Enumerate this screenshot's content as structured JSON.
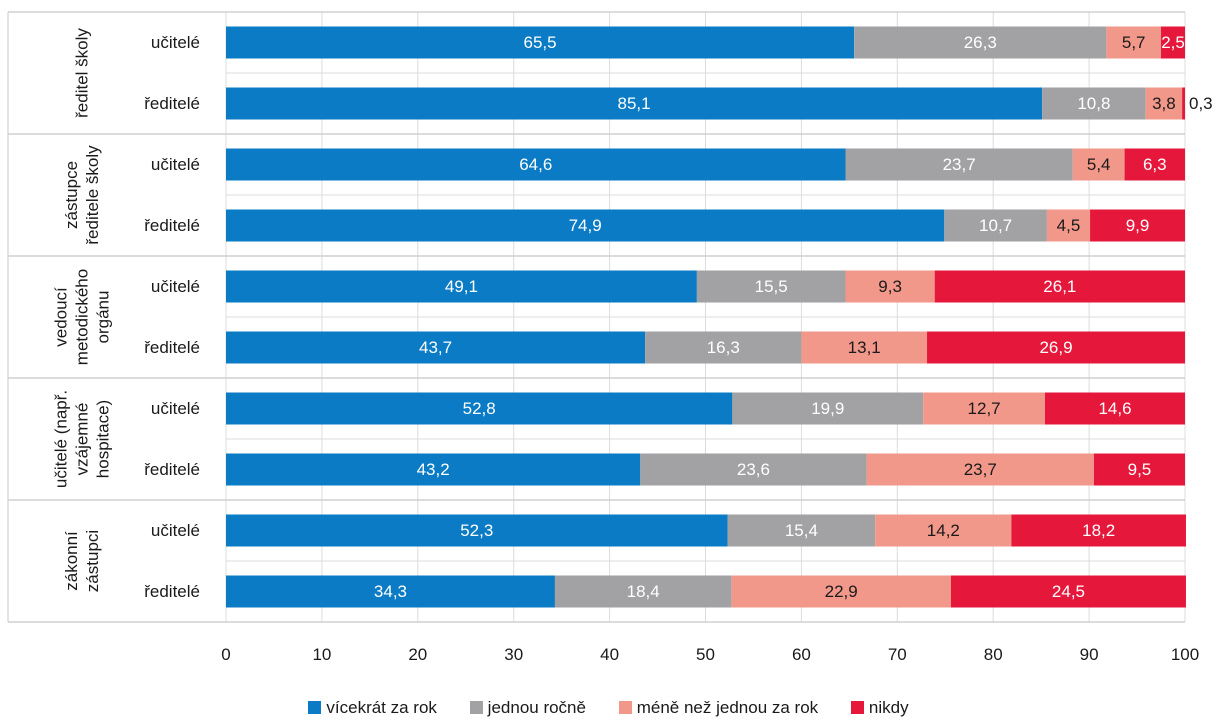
{
  "chart_data": {
    "type": "bar",
    "orientation": "horizontal",
    "stacked": true,
    "groups": [
      {
        "label_lines": [
          "ředitel školy"
        ],
        "rows": [
          "učitelé",
          "ředitelé"
        ]
      },
      {
        "label_lines": [
          "zástupce",
          "ředitele školy"
        ],
        "rows": [
          "učitelé",
          "ředitelé"
        ]
      },
      {
        "label_lines": [
          "vedoucí",
          "metodického",
          "orgánu"
        ],
        "rows": [
          "učitelé",
          "ředitelé"
        ]
      },
      {
        "label_lines": [
          "učitelé (např.",
          "vzájemné",
          "hospitace)"
        ],
        "rows": [
          "učitelé",
          "ředitelé"
        ]
      },
      {
        "label_lines": [
          "zákonní",
          "zástupci"
        ],
        "rows": [
          "učitelé",
          "ředitelé"
        ]
      }
    ],
    "series": [
      {
        "name": "vícekrát za rok",
        "color": "#0a7bc4",
        "values": [
          65.5,
          85.1,
          64.6,
          74.9,
          49.1,
          43.7,
          52.8,
          43.2,
          52.3,
          34.3
        ],
        "labels": [
          "65,5",
          "85,1",
          "64,6",
          "74,9",
          "49,1",
          "43,7",
          "52,8",
          "43,2",
          "52,3",
          "34,3"
        ]
      },
      {
        "name": "jednou ročně",
        "color": "#a2a2a5",
        "values": [
          26.3,
          10.8,
          23.7,
          10.7,
          15.5,
          16.3,
          19.9,
          23.6,
          15.4,
          18.4
        ],
        "labels": [
          "26,3",
          "10,8",
          "23,7",
          "10,7",
          "15,5",
          "16,3",
          "19,9",
          "23,6",
          "15,4",
          "18,4"
        ]
      },
      {
        "name": "méně než jednou za rok",
        "color": "#f2988a",
        "values": [
          5.7,
          3.8,
          5.4,
          4.5,
          9.3,
          13.1,
          12.7,
          23.7,
          14.2,
          22.9
        ],
        "labels": [
          "5,7",
          "3,8",
          "5,4",
          "4,5",
          "9,3",
          "13,1",
          "12,7",
          "23,7",
          "14,2",
          "22,9"
        ]
      },
      {
        "name": "nikdy",
        "color": "#e5173b",
        "values": [
          2.5,
          0.3,
          6.3,
          9.9,
          26.1,
          26.9,
          14.6,
          9.5,
          18.2,
          24.5
        ],
        "labels": [
          "2,5",
          "0,3",
          "6,3",
          "9,9",
          "26,1",
          "26,9",
          "14,6",
          "9,5",
          "18,2",
          "24,5"
        ]
      }
    ],
    "x_ticks": [
      "0",
      "10",
      "20",
      "30",
      "40",
      "50",
      "60",
      "70",
      "80",
      "90",
      "100"
    ],
    "xlim": [
      0,
      100
    ],
    "grid": true,
    "legend_position": "bottom"
  }
}
